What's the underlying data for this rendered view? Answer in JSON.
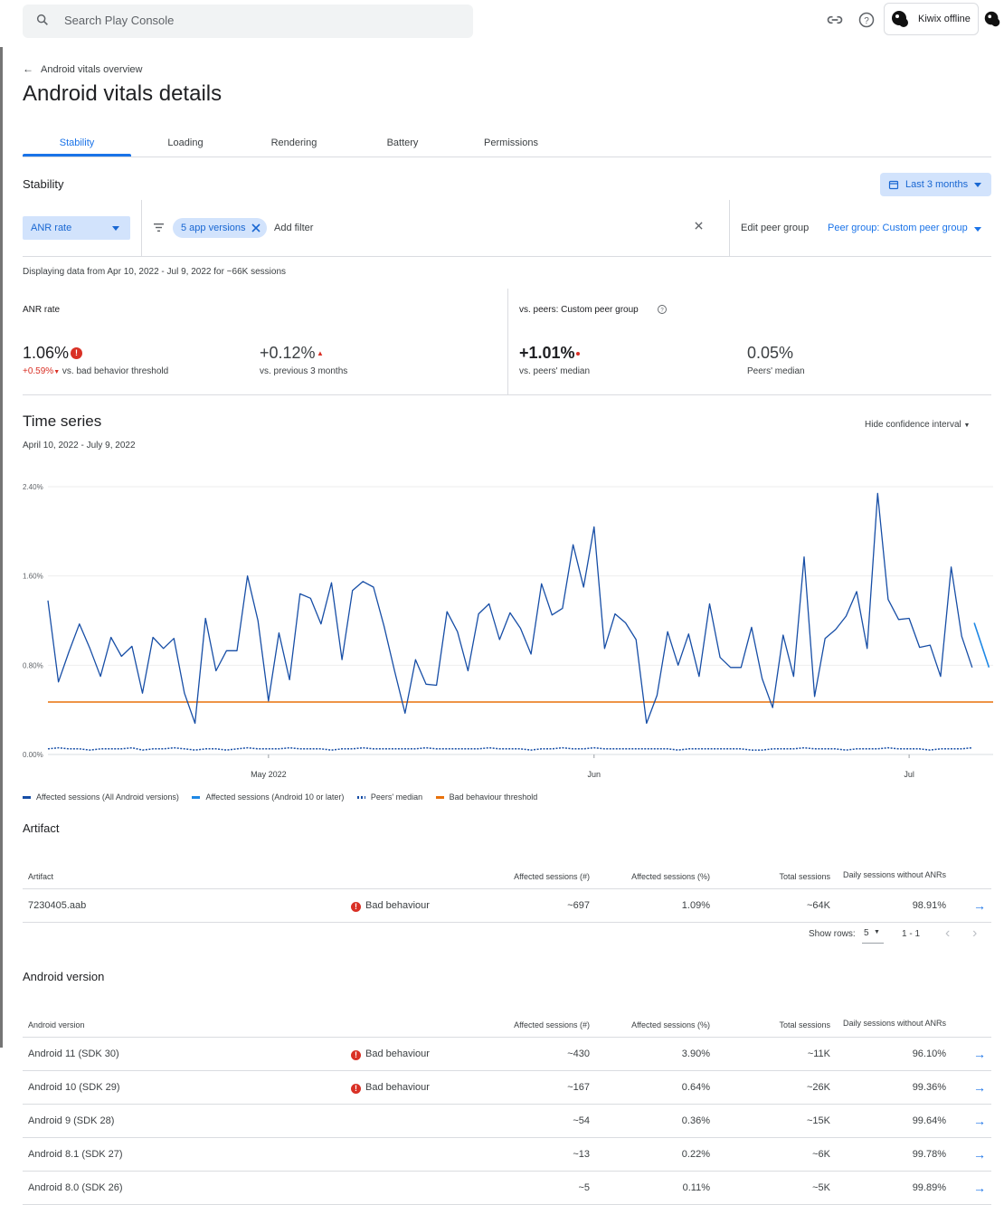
{
  "search": {
    "placeholder": "Search Play Console"
  },
  "account": {
    "name": "Kiwix offline"
  },
  "breadcrumb": {
    "label": "Android vitals overview"
  },
  "page": {
    "title": "Android vitals details"
  },
  "tabs": [
    {
      "label": "Stability",
      "active": true
    },
    {
      "label": "Loading"
    },
    {
      "label": "Rendering"
    },
    {
      "label": "Battery"
    },
    {
      "label": "Permissions"
    }
  ],
  "section": {
    "title": "Stability",
    "period": "Last 3 months"
  },
  "filters": {
    "metric": "ANR rate",
    "chip": "5 app versions",
    "add_filter": "Add filter",
    "edit_peer": "Edit peer group",
    "peer_group": "Peer group: Custom peer group"
  },
  "display_note": "Displaying data from Apr 10, 2022 - Jul 9, 2022 for ~66K sessions",
  "metrics": {
    "left_title": "ANR rate",
    "value": "1.06%",
    "delta_threshold": "+0.59%",
    "delta_threshold_label": "vs. bad behavior threshold",
    "delta_prev": "+0.12%",
    "delta_prev_label": "vs. previous 3 months",
    "right_title": "vs. peers: Custom peer group",
    "vs_peers": "+1.01%",
    "vs_peers_label": "vs. peers' median",
    "peers_median": "0.05%",
    "peers_median_label": "Peers' median"
  },
  "timeseries": {
    "title": "Time series",
    "range": "April 10, 2022 - July 9, 2022",
    "toggle": "Hide confidence interval"
  },
  "chart_data": {
    "type": "line",
    "x_start": "2022-04-10",
    "x_end": "2022-07-09",
    "y_ticks": [
      "2.40%",
      "1.60%",
      "0.80%",
      "0.00%"
    ],
    "ylim": [
      0,
      2.4
    ],
    "x_ticks": [
      "May 2022",
      "Jun",
      "Jul"
    ],
    "grid": true,
    "legend_position": "bottom",
    "series": [
      {
        "name": "Affected sessions (All Android versions)",
        "color": "#174ea6",
        "style": "solid",
        "values": [
          1.38,
          0.65,
          0.92,
          1.17,
          0.95,
          0.7,
          1.05,
          0.88,
          0.97,
          0.55,
          1.05,
          0.95,
          1.04,
          0.55,
          0.28,
          1.22,
          0.75,
          0.93,
          0.93,
          1.6,
          1.2,
          0.48,
          1.09,
          0.67,
          1.44,
          1.4,
          1.17,
          1.54,
          0.85,
          1.47,
          1.55,
          1.5,
          1.15,
          0.75,
          0.37,
          0.85,
          0.63,
          0.62,
          1.28,
          1.1,
          0.75,
          1.26,
          1.35,
          1.03,
          1.27,
          1.13,
          0.9,
          1.53,
          1.25,
          1.31,
          1.88,
          1.5,
          2.04,
          0.95,
          1.26,
          1.18,
          1.03,
          0.28,
          0.53,
          1.1,
          0.8,
          1.08,
          0.7,
          1.35,
          0.87,
          0.78,
          0.78,
          1.14,
          0.68,
          0.42,
          1.07,
          0.7,
          1.77,
          0.52,
          1.04,
          1.12,
          1.24,
          1.46,
          0.95,
          2.34,
          1.39,
          1.21,
          1.22,
          0.96,
          0.98,
          0.7,
          1.68,
          1.06,
          0.78
        ]
      },
      {
        "name": "Affected sessions (Android 10 or later)",
        "color": "#1e88e5",
        "style": "solid",
        "values": [
          1.18,
          0.78
        ]
      },
      {
        "name": "Peers' median",
        "color": "#174ea6",
        "style": "dotted",
        "values": [
          0.05,
          0.06,
          0.05,
          0.05,
          0.04,
          0.05,
          0.05,
          0.05,
          0.06,
          0.04,
          0.05,
          0.05,
          0.06,
          0.05,
          0.04,
          0.05,
          0.05,
          0.04,
          0.05,
          0.06,
          0.05,
          0.05,
          0.05,
          0.06,
          0.05,
          0.05,
          0.05,
          0.04,
          0.05,
          0.05,
          0.06,
          0.05,
          0.05,
          0.05,
          0.05,
          0.05,
          0.06,
          0.05,
          0.05,
          0.05,
          0.05,
          0.05,
          0.06,
          0.05,
          0.05,
          0.05,
          0.04,
          0.05,
          0.05,
          0.06,
          0.05,
          0.05,
          0.06,
          0.05,
          0.05,
          0.05,
          0.05,
          0.05,
          0.05,
          0.05,
          0.04,
          0.05,
          0.05,
          0.05,
          0.05,
          0.05,
          0.05,
          0.04,
          0.04,
          0.05,
          0.05,
          0.05,
          0.06,
          0.05,
          0.05,
          0.05,
          0.04,
          0.05,
          0.05,
          0.05,
          0.06,
          0.05,
          0.05,
          0.05,
          0.04,
          0.05,
          0.05,
          0.05,
          0.06
        ]
      },
      {
        "name": "Bad behaviour threshold",
        "color": "#e8710a",
        "style": "solid",
        "values": [
          0.47,
          0.47
        ]
      }
    ]
  },
  "artifact": {
    "title": "Artifact",
    "columns": [
      "Artifact",
      "",
      "Affected sessions (#)",
      "Affected sessions (%)",
      "Total sessions",
      "Daily sessions without ANRs"
    ],
    "rows": [
      {
        "name": "7230405.aab",
        "badge": "Bad behaviour",
        "affected_n": "~697",
        "affected_pct": "1.09%",
        "total": "~64K",
        "daily": "98.91%"
      }
    ],
    "pagination": {
      "show_rows_label": "Show rows:",
      "rows": "5",
      "range": "1 - 1"
    }
  },
  "android_version": {
    "title": "Android version",
    "columns": [
      "Android version",
      "",
      "Affected sessions (#)",
      "Affected sessions (%)",
      "Total sessions",
      "Daily sessions without ANRs"
    ],
    "rows": [
      {
        "name": "Android 11 (SDK 30)",
        "badge": "Bad behaviour",
        "affected_n": "~430",
        "affected_pct": "3.90%",
        "total": "~11K",
        "daily": "96.10%"
      },
      {
        "name": "Android 10 (SDK 29)",
        "badge": "Bad behaviour",
        "affected_n": "~167",
        "affected_pct": "0.64%",
        "total": "~26K",
        "daily": "99.36%"
      },
      {
        "name": "Android 9 (SDK 28)",
        "badge": "",
        "affected_n": "~54",
        "affected_pct": "0.36%",
        "total": "~15K",
        "daily": "99.64%"
      },
      {
        "name": "Android 8.1 (SDK 27)",
        "badge": "",
        "affected_n": "~13",
        "affected_pct": "0.22%",
        "total": "~6K",
        "daily": "99.78%"
      },
      {
        "name": "Android 8.0 (SDK 26)",
        "badge": "",
        "affected_n": "~5",
        "affected_pct": "0.11%",
        "total": "~5K",
        "daily": "99.89%"
      }
    ]
  },
  "colors": {
    "accent": "#1a73e8",
    "chip_bg": "#d2e3fc",
    "error": "#d93025",
    "threshold": "#e8710a"
  }
}
